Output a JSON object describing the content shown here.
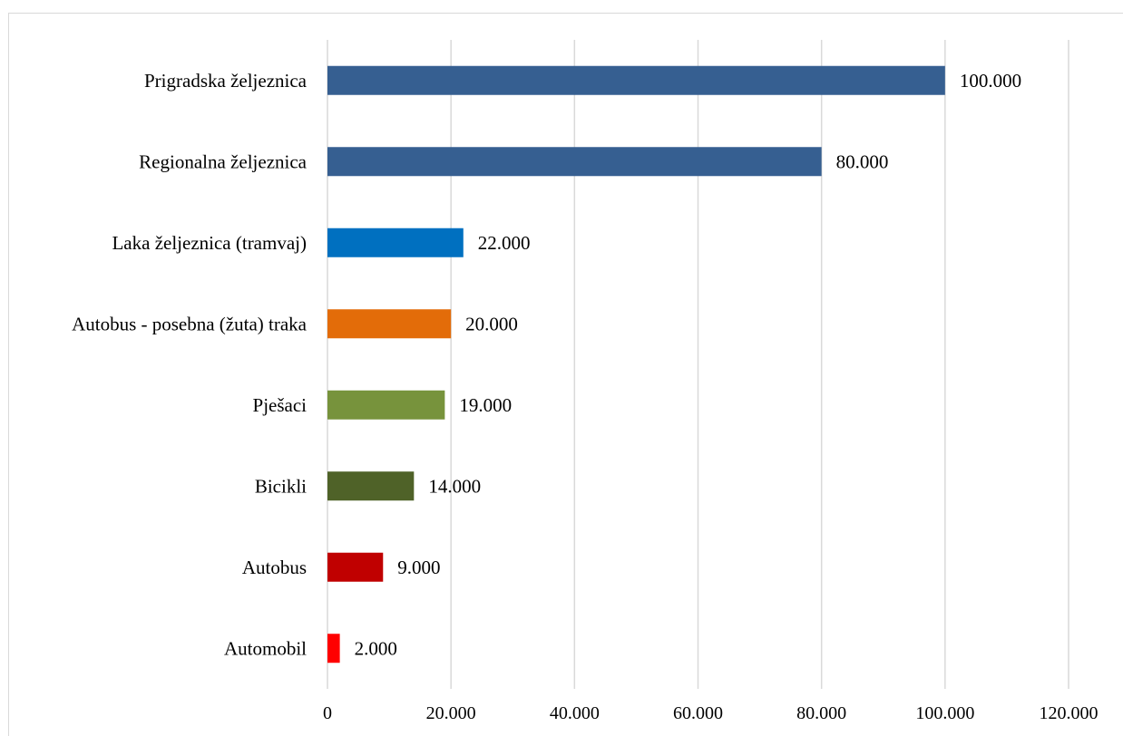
{
  "chart_data": {
    "type": "bar",
    "orientation": "horizontal",
    "title": "",
    "xlabel": "",
    "ylabel": "",
    "xlim": [
      0,
      120000
    ],
    "grid": "vertical",
    "legend": "none",
    "categories": [
      "Prigradska željeznica",
      "Regionalna željeznica",
      "Laka željeznica (tramvaj)",
      "Autobus - posebna (žuta) traka",
      "Pješaci",
      "Bicikli",
      "Autobus",
      "Automobil"
    ],
    "values": [
      100000,
      80000,
      22000,
      20000,
      19000,
      14000,
      9000,
      2000
    ],
    "value_labels": [
      "100.000",
      "80.000",
      "22.000",
      "20.000",
      "19.000",
      "14.000",
      "9.000",
      "2.000"
    ],
    "bar_colors": [
      "#365f91",
      "#365f91",
      "#0070c0",
      "#e36c09",
      "#77933c",
      "#4f6228",
      "#c00000",
      "#ff0000"
    ],
    "ticks": [
      0,
      20000,
      40000,
      60000,
      80000,
      100000,
      120000
    ],
    "tick_labels": [
      "0",
      "20.000",
      "40.000",
      "60.000",
      "80.000",
      "100.000",
      "120.000"
    ]
  }
}
